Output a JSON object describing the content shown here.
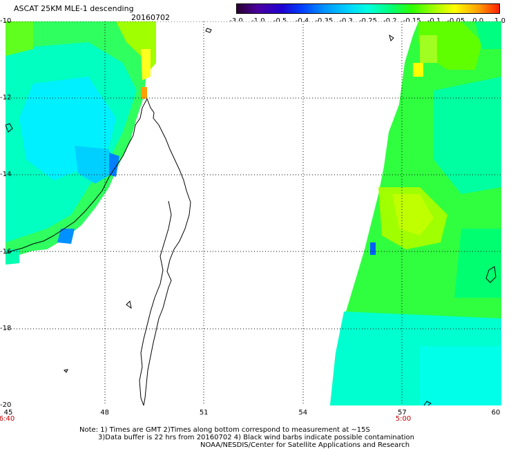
{
  "title": "ASCAT 25KM MLE-1 descending",
  "date": "20160702",
  "colorbar": {
    "ticks": [
      "-3.0",
      "-1.0",
      "-0.5",
      "-0.4",
      "-0.35",
      "-0.3",
      "-0.25",
      "-0.2",
      "-0.15",
      "-0.1",
      "-0.05",
      "0.0",
      "1.0"
    ],
    "colors": [
      "#2a0030",
      "#4a00a0",
      "#2000d0",
      "#0040ff",
      "#0090ff",
      "#00d0ff",
      "#00ffe0",
      "#00ff80",
      "#30ff00",
      "#a0ff00",
      "#ffff00",
      "#ffa000",
      "#ff2000"
    ]
  },
  "axes": {
    "lat_labels": [
      "-10",
      "-12",
      "-14",
      "-16",
      "-18",
      "-20"
    ],
    "lon_labels": [
      "45",
      "48",
      "51",
      "54",
      "57",
      "60"
    ],
    "lat_range": [
      -20,
      -10
    ],
    "lon_range": [
      45,
      60
    ]
  },
  "times": {
    "left": "6:40",
    "right": "5:00"
  },
  "notes": {
    "line1": "Note: 1) Times are GMT 2)Times along bottom correspond to measurement at ~15S",
    "line2": "3)Data buffer is 22 hrs from 20160702 4) Black wind barbs indicate possible contamination",
    "line3": "NOAA/NESDIS/Center for Satellite Applications and Research"
  },
  "swath_colors": {
    "cyan": "#00ffe0",
    "teal": "#00ffb0",
    "green": "#00ff40",
    "lime": "#60ff00",
    "yellow": "#ffff00",
    "blue": "#0080ff",
    "orange": "#ffa000"
  }
}
